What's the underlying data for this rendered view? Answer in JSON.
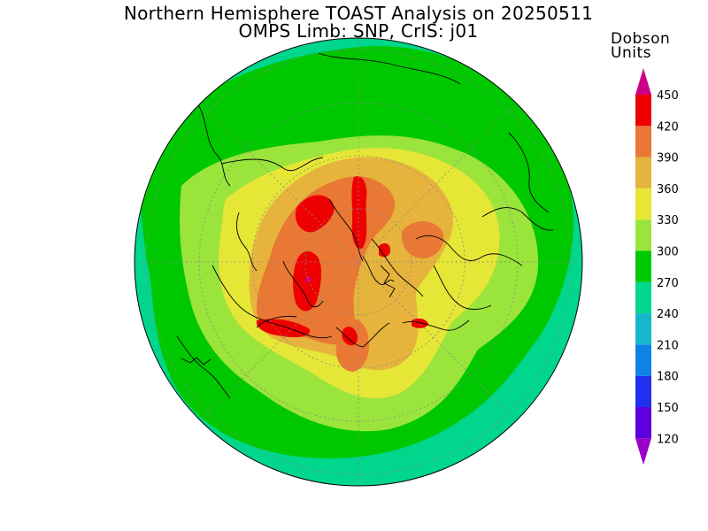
{
  "title": {
    "line1": "Northern Hemisphere TOAST Analysis on 20250511",
    "line2": "OMPS Limb: SNP, CrIS: j01"
  },
  "legend": {
    "units_line1": "Dobson",
    "units_line2": "Units",
    "levels": [
      120,
      150,
      180,
      210,
      240,
      270,
      300,
      330,
      360,
      390,
      420,
      450
    ],
    "colors": [
      "#9900cc",
      "#5d00dd",
      "#2030ee",
      "#0f82e6",
      "#18b6cc",
      "#00d68c",
      "#00c800",
      "#9ae43c",
      "#e6e637",
      "#e6b43c",
      "#e87834",
      "#ee0000",
      "#cc0088"
    ]
  },
  "colors": {
    "level_240": "#00d68c",
    "level_270": "#00c800",
    "level_300": "#9ae43c",
    "level_330": "#e6e637",
    "level_360": "#e6b43c",
    "level_390": "#e87834",
    "level_420": "#ee0000",
    "level_450": "#cc0088"
  }
}
